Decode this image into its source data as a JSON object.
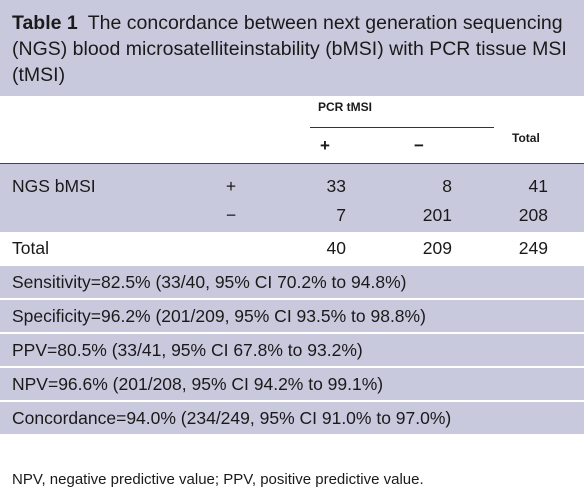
{
  "caption": {
    "label": "Table 1",
    "text": "The concordance between next generation sequencing (NGS) blood microsatelliteinstability (bMSI) with PCR tissue MSI (tMSI)"
  },
  "columns": {
    "group_header": "PCR tMSI",
    "plus": "+",
    "minus": "−",
    "total": "Total"
  },
  "rows": [
    {
      "label": "NGS bMSI",
      "sign": "+",
      "plus": "33",
      "minus": "8",
      "total": "41"
    },
    {
      "label": "",
      "sign": "−",
      "plus": "7",
      "minus": "201",
      "total": "208"
    },
    {
      "label": "Total",
      "sign": "",
      "plus": "40",
      "minus": "209",
      "total": "249"
    }
  ],
  "metrics": [
    "Sensitivity=82.5% (33/40, 95% CI 70.2% to 94.8%)",
    "Specificity=96.2% (201/209, 95% CI 93.5% to 98.8%)",
    "PPV=80.5% (33/41, 95% CI 67.8% to 93.2%)",
    "NPV=96.6% (201/208, 95% CI 94.2% to 99.1%)",
    "Concordance=94.0% (234/249, 95% CI 91.0% to 97.0%)"
  ],
  "footnote": "NPV, negative predictive value; PPV, positive predictive value.",
  "colors": {
    "band": "#c9c9de",
    "text": "#1a1a1a"
  }
}
